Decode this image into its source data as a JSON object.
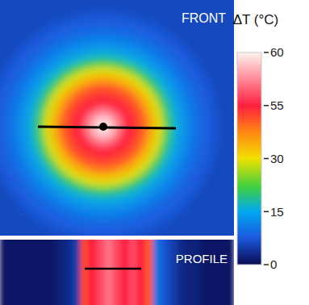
{
  "chart_data": {
    "type": "heatmap",
    "tick_labels": false,
    "front": {
      "label": "FRONT",
      "radial_profile": [
        60,
        59,
        57,
        55,
        52,
        47,
        37,
        29,
        21,
        16,
        13,
        11,
        9,
        8,
        7
      ],
      "background": 6
    },
    "profile": {
      "label": "PROFILE",
      "columns": [
        1,
        1,
        1,
        1,
        1,
        1,
        1,
        2,
        3,
        5,
        50,
        55,
        56,
        57,
        56,
        55,
        56,
        55,
        48,
        10,
        7,
        5,
        3,
        2,
        2,
        1,
        1,
        1,
        1
      ]
    },
    "colorbar": {
      "title": "ΔT (°C)",
      "range": [
        0,
        60
      ],
      "ticks": [
        0,
        15,
        30,
        55,
        60
      ]
    }
  }
}
